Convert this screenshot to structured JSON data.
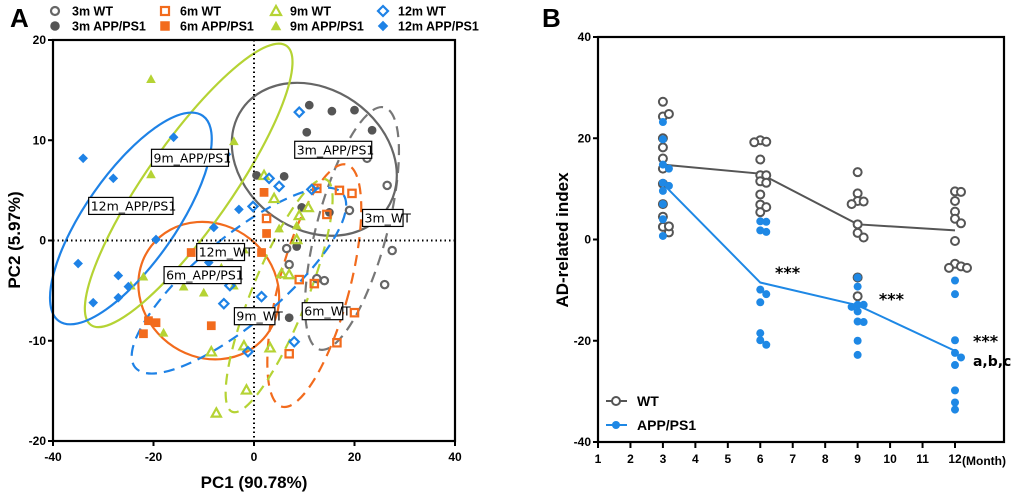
{
  "chart_data": [
    {
      "type": "scatter",
      "panel_label": "A",
      "title": "",
      "xlabel": "PC1 (90.78%)",
      "ylabel": "PC2 (5.97%)",
      "xlim": [
        -40,
        40
      ],
      "ylim": [
        -20,
        20
      ],
      "xticks": [
        "-40",
        "-20",
        "0",
        "20",
        "40"
      ],
      "yticks": [
        "-20",
        "-10",
        "0",
        "10",
        "20"
      ],
      "xtick_values": [
        -40,
        -20,
        0,
        20,
        40
      ],
      "ytick_values": [
        -20,
        -10,
        0,
        10,
        20
      ],
      "reference_lines": {
        "x": 0,
        "y": 0,
        "style": "dotted"
      },
      "legend_position": "top",
      "series": [
        {
          "name": "3m WT",
          "color": "#666666",
          "marker": "circle",
          "filled": false,
          "points": [
            [
              22.5,
              8.2
            ],
            [
              26.5,
              5.5
            ],
            [
              19,
              3
            ],
            [
              27.5,
              -1
            ],
            [
              6.5,
              -0.8
            ],
            [
              12.5,
              -3.8
            ],
            [
              26,
              -4.4
            ],
            [
              7,
              -2.4
            ],
            [
              14,
              -4
            ]
          ]
        },
        {
          "name": "3m APP/PS1",
          "color": "#555555",
          "marker": "circle",
          "filled": true,
          "points": [
            [
              11,
              13.5
            ],
            [
              15.5,
              12.9
            ],
            [
              20,
              13
            ],
            [
              23.5,
              11
            ],
            [
              10.5,
              10.8
            ],
            [
              6,
              6.4
            ],
            [
              0.5,
              6.5
            ],
            [
              9.5,
              3.3
            ],
            [
              8.5,
              -0.6
            ],
            [
              7,
              -7.7
            ],
            [
              15,
              2.8
            ]
          ]
        },
        {
          "name": "6m WT",
          "color": "#f26b1d",
          "marker": "square",
          "filled": false,
          "points": [
            [
              12.5,
              5.2
            ],
            [
              17,
              5
            ],
            [
              19.5,
              4.7
            ],
            [
              14.5,
              2.6
            ],
            [
              2.5,
              2.2
            ],
            [
              9,
              -3.9
            ],
            [
              12,
              -4.3
            ],
            [
              20,
              -7.2
            ],
            [
              16.5,
              -10.2
            ],
            [
              7,
              -11.3
            ]
          ]
        },
        {
          "name": "6m APP/PS1",
          "color": "#f26b1d",
          "marker": "square",
          "filled": true,
          "points": [
            [
              -12.5,
              -1.2
            ],
            [
              1.5,
              -1.2
            ],
            [
              -21,
              -8
            ],
            [
              -19.5,
              -8.2
            ],
            [
              -22,
              -9.3
            ],
            [
              -8.5,
              -8.5
            ],
            [
              2.5,
              0.7
            ],
            [
              2,
              4.8
            ]
          ]
        },
        {
          "name": "9m WT",
          "color": "#b5d334",
          "marker": "triangle",
          "filled": false,
          "points": [
            [
              9,
              2.5
            ],
            [
              8.5,
              0.1
            ],
            [
              7,
              -3.4
            ],
            [
              5.5,
              -3.3
            ],
            [
              -6.5,
              -2.9
            ],
            [
              -12.5,
              -3.6
            ],
            [
              -8.5,
              -11.1
            ],
            [
              -2,
              -10.5
            ],
            [
              3.2,
              -10.7
            ],
            [
              -7.5,
              -17.2
            ],
            [
              -1.5,
              -14.9
            ],
            [
              10.8,
              3.3
            ],
            [
              2,
              6.5
            ],
            [
              4,
              4.2
            ]
          ]
        },
        {
          "name": "9m APP/PS1",
          "color": "#b5d334",
          "marker": "triangle",
          "filled": true,
          "points": [
            [
              -20.5,
              16.1
            ],
            [
              -4,
              9.9
            ],
            [
              -20.5,
              6.6
            ],
            [
              -24.5,
              -4.5
            ],
            [
              -14,
              -4.6
            ],
            [
              -22,
              -3.6
            ],
            [
              -18,
              -9.2
            ],
            [
              -10,
              -5.2
            ],
            [
              -4,
              -4.5
            ],
            [
              -2,
              -0.9
            ],
            [
              5,
              1.2
            ],
            [
              8.5,
              1.5
            ]
          ]
        },
        {
          "name": "12m WT",
          "color": "#1e82e6",
          "marker": "diamond",
          "filled": false,
          "points": [
            [
              9,
              12.8
            ],
            [
              5,
              5.4
            ],
            [
              3,
              6.2
            ],
            [
              -0.2,
              3.4
            ],
            [
              -4.8,
              -4.5
            ],
            [
              -1.2,
              -11.1
            ],
            [
              -6,
              -6.3
            ],
            [
              8,
              -10.1
            ],
            [
              1.5,
              -5.6
            ],
            [
              11.5,
              5.1
            ]
          ]
        },
        {
          "name": "12m APP/PS1",
          "color": "#1e82e6",
          "marker": "diamond",
          "filled": true,
          "points": [
            [
              -34,
              8.2
            ],
            [
              -28,
              6.2
            ],
            [
              -16,
              10.3
            ],
            [
              -5.5,
              8.6
            ],
            [
              -35,
              -2.3
            ],
            [
              -32,
              -6.2
            ],
            [
              -27,
              -5.7
            ],
            [
              -27,
              -3.5
            ],
            [
              -25,
              -4.6
            ],
            [
              -19.5,
              0.1
            ],
            [
              -9,
              -2.2
            ],
            [
              -8,
              1.3
            ],
            [
              -3,
              3.1
            ]
          ]
        }
      ],
      "ellipses": [
        {
          "group": "3m WT",
          "style": "dashed",
          "color": "#777777",
          "center": [
            19.5,
            1.2
          ],
          "semi_axes": [
            7,
            12.5
          ],
          "rotation_deg": 15
        },
        {
          "group": "3m APP/PS1",
          "style": "solid",
          "color": "#666666",
          "center": [
            12,
            8.1
          ],
          "semi_axes": [
            17.5,
            7
          ],
          "rotation_deg": 35
        },
        {
          "group": "6m WT",
          "style": "dashed",
          "color": "#f26b1d",
          "center": [
            12,
            -4.5
          ],
          "semi_axes": [
            7,
            12.5
          ],
          "rotation_deg": 15
        },
        {
          "group": "6m APP/PS1",
          "style": "solid",
          "color": "#f26b1d",
          "center": [
            -9,
            -5
          ],
          "semi_axes": [
            14.5,
            6.6
          ],
          "rotation_deg": 38
        },
        {
          "group": "9m WT",
          "style": "dashed",
          "color": "#b5d334",
          "center": [
            5,
            -5.5
          ],
          "semi_axes": [
            5.5,
            12.5
          ],
          "rotation_deg": 22
        },
        {
          "group": "9m APP/PS1",
          "style": "solid",
          "color": "#b5d334",
          "center": [
            -13,
            5.5
          ],
          "semi_axes": [
            8.5,
            17
          ],
          "rotation_deg": 35
        },
        {
          "group": "12m WT",
          "style": "dashed",
          "color": "#1e82e6",
          "center": [
            -3,
            -4
          ],
          "semi_axes": [
            8.5,
            13.5
          ],
          "rotation_deg": 50
        },
        {
          "group": "12m APP/PS1",
          "style": "solid",
          "color": "#1e82e6",
          "center": [
            -24.5,
            2.2
          ],
          "semi_axes": [
            9,
            12.5
          ],
          "rotation_deg": 35
        }
      ],
      "annotations": [
        {
          "text": "9m_APP/PS1",
          "x": -20,
          "y": 7.9
        },
        {
          "text": "3m_APP/PS1",
          "x": 8.5,
          "y": 8.7
        },
        {
          "text": "12m_APP/PS1",
          "x": -32.5,
          "y": 3.1
        },
        {
          "text": "3m_WT",
          "x": 22,
          "y": 1.9
        },
        {
          "text": "12m_WT",
          "x": -11,
          "y": -1.5
        },
        {
          "text": "6m_APP/PS1",
          "x": -17.5,
          "y": -3.8
        },
        {
          "text": "6m_WT",
          "x": 10,
          "y": -7.4
        },
        {
          "text": "9m_WT",
          "x": -3.5,
          "y": -7.9
        }
      ]
    },
    {
      "type": "line",
      "panel_label": "B",
      "title": "",
      "xlabel": "",
      "x_unit_label": "(Month)",
      "ylabel": "AD-related index",
      "xlim": [
        1,
        12.5
      ],
      "ylim": [
        -40,
        40
      ],
      "xticks": [
        "1",
        "2",
        "3",
        "4",
        "5",
        "6",
        "7",
        "8",
        "9",
        "10",
        "11",
        "12"
      ],
      "xtick_values": [
        1,
        2,
        3,
        4,
        5,
        6,
        7,
        8,
        9,
        10,
        11,
        12
      ],
      "yticks": [
        "-40",
        "-20",
        "0",
        "20",
        "40"
      ],
      "ytick_values": [
        -40,
        -20,
        0,
        20,
        40
      ],
      "legend_position": "bottom-left",
      "categories": [
        3,
        6,
        9,
        12
      ],
      "series": [
        {
          "name": "WT",
          "color": "#555555",
          "marker": "circle",
          "filled": false,
          "means": [
            14.8,
            13,
            3,
            1.8
          ],
          "points": {
            "3": [
              27.2,
              24.3,
              24.8,
              20,
              18.2,
              16,
              14,
              11,
              7,
              4.5,
              2.5,
              1.4,
              2.6
            ],
            "6": [
              19.6,
              19.3,
              19.2,
              15.8,
              12.7,
              12.7,
              11.5,
              11.2,
              8.9,
              6.9,
              6.4,
              5.4
            ],
            "9": [
              13.3,
              9.1,
              7.6,
              7.5,
              7,
              3,
              1.3,
              0.4,
              -7.5,
              -11.2
            ],
            "12": [
              9.5,
              9.4,
              7.6,
              5.5,
              4.1,
              3.2,
              -0.3,
              -4.8,
              -5.3,
              -5.6,
              -5.6
            ]
          }
        },
        {
          "name": "APP/PS1",
          "color": "#1e88e5",
          "marker": "circle",
          "filled": true,
          "means": [
            11,
            -8.5,
            -13,
            -22
          ],
          "points": {
            "3": [
              23.2,
              19.8,
              14.8,
              14,
              11.2,
              10.6,
              9.6,
              7,
              4,
              0.7
            ],
            "6": [
              3.6,
              3.5,
              1.8,
              1.5,
              -9.9,
              -10.8,
              -12.4,
              -18.5,
              -19.9,
              -20.8
            ],
            "9": [
              -7.5,
              -9.3,
              -12.9,
              -12.9,
              -13.3,
              -14.2,
              -16.2,
              -16.3,
              -20,
              -22.8
            ],
            "12": [
              -8.1,
              -10.8,
              -19.9,
              -22.4,
              -23.3,
              -24.8,
              -29.8,
              -32.2,
              -33.6
            ]
          }
        }
      ],
      "annotations": [
        {
          "text": "***",
          "x": 6.7,
          "y": -6
        },
        {
          "text": "***",
          "x": 9.9,
          "y": -11.3
        },
        {
          "text": "***",
          "x": 12.8,
          "y": -19.6
        },
        {
          "text": "a,b,c",
          "x": 12.8,
          "y": -24
        }
      ]
    }
  ],
  "legendA": [
    {
      "label": "3m WT",
      "series": 0
    },
    {
      "label": "3m APP/PS1",
      "series": 1
    },
    {
      "label": "6m WT",
      "series": 2
    },
    {
      "label": "6m APP/PS1",
      "series": 3
    },
    {
      "label": "9m WT",
      "series": 4
    },
    {
      "label": "9m APP/PS1",
      "series": 5
    },
    {
      "label": "12m WT",
      "series": 6
    },
    {
      "label": "12m APP/PS1",
      "series": 7
    }
  ]
}
